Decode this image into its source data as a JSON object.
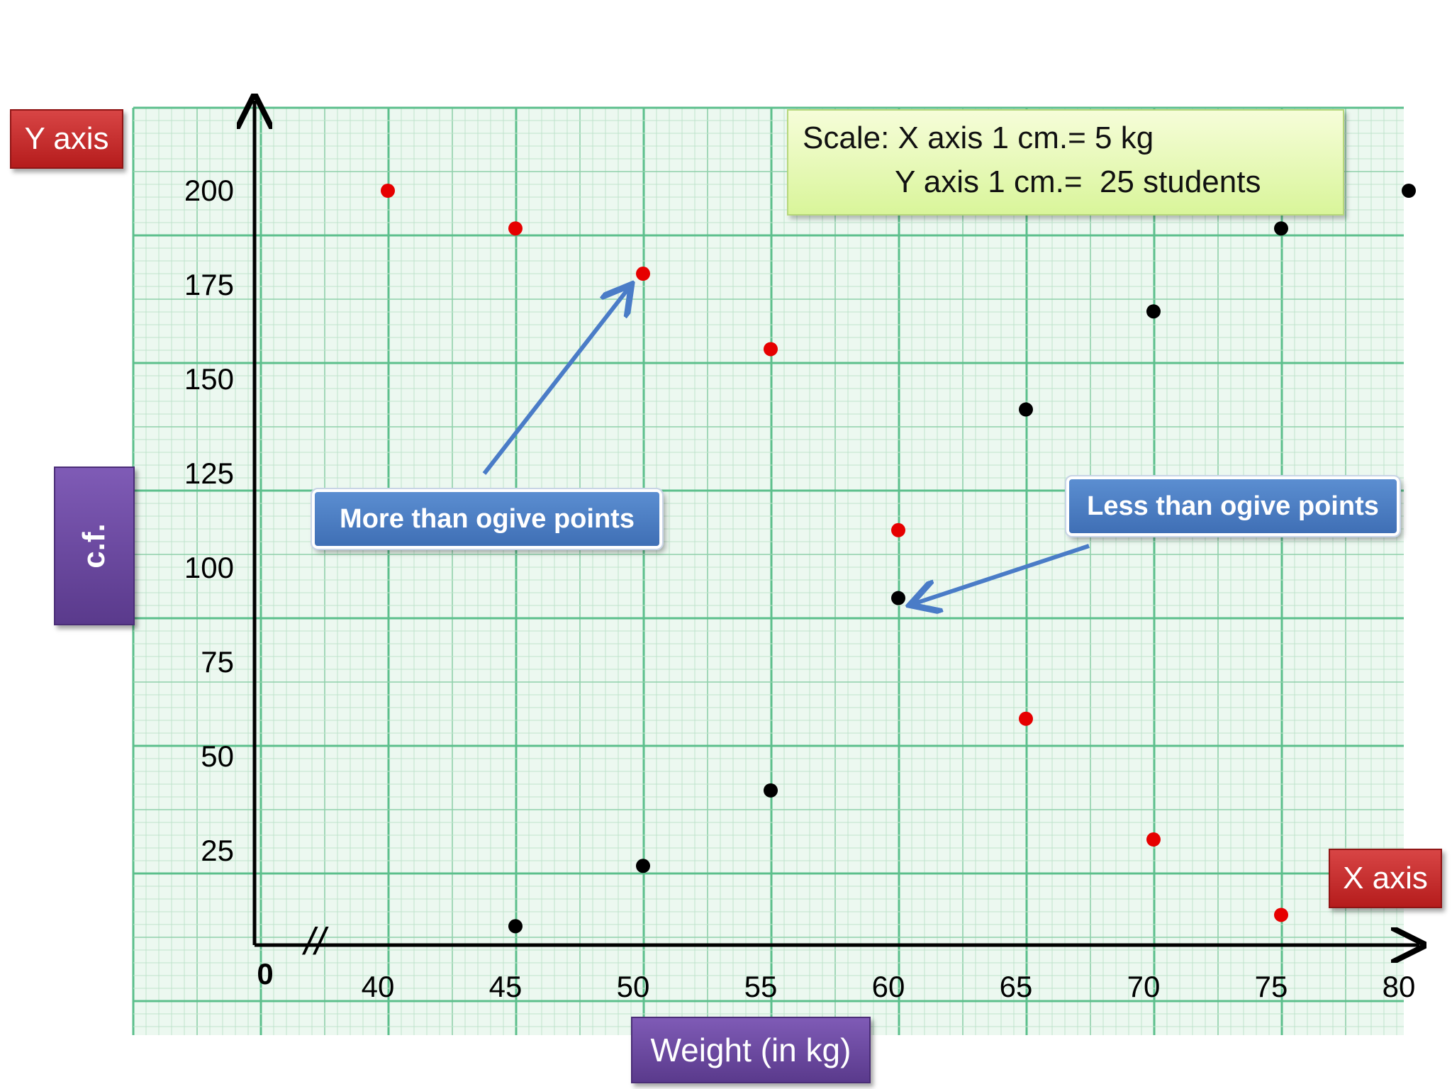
{
  "labels": {
    "y_axis_tag": "Y axis",
    "x_axis_tag": "X axis",
    "cf_tag": "c.f.",
    "weight_tag": "Weight (in kg)",
    "scale_line1": "Scale: X axis 1 cm.= 5 kg",
    "scale_line2": "Y axis 1 cm.=  25 students",
    "more_callout": "More than ogive points",
    "less_callout": "Less than ogive points",
    "origin": "0",
    "axis_break": "//"
  },
  "colors": {
    "more_than": "#e60000",
    "less_than": "#000000",
    "arrow": "#4a7cc7",
    "grid_minor": "#bfe3cc",
    "grid_mid": "#8fd0aa",
    "grid_major": "#5cbf8c"
  },
  "chart_data": {
    "type": "scatter",
    "xlabel": "Weight (in kg)",
    "ylabel": "c.f.",
    "x_ticks": [
      40,
      45,
      50,
      55,
      60,
      65,
      70,
      75,
      80
    ],
    "y_ticks": [
      25,
      50,
      75,
      100,
      125,
      150,
      175,
      200
    ],
    "xlim": [
      35,
      80
    ],
    "ylim": [
      0,
      200
    ],
    "x_axis_break": true,
    "grid": true,
    "series": [
      {
        "name": "More than ogive points",
        "color": "#e60000",
        "points": [
          [
            40,
            200
          ],
          [
            45,
            190
          ],
          [
            50,
            178
          ],
          [
            55,
            158
          ],
          [
            60,
            110
          ],
          [
            65,
            60
          ],
          [
            70,
            28
          ],
          [
            75,
            8
          ]
        ]
      },
      {
        "name": "Less than ogive points",
        "color": "#000000",
        "points": [
          [
            45,
            5
          ],
          [
            50,
            21
          ],
          [
            55,
            41
          ],
          [
            60,
            92
          ],
          [
            65,
            142
          ],
          [
            70,
            168
          ],
          [
            75,
            190
          ],
          [
            80,
            200
          ]
        ]
      }
    ]
  }
}
